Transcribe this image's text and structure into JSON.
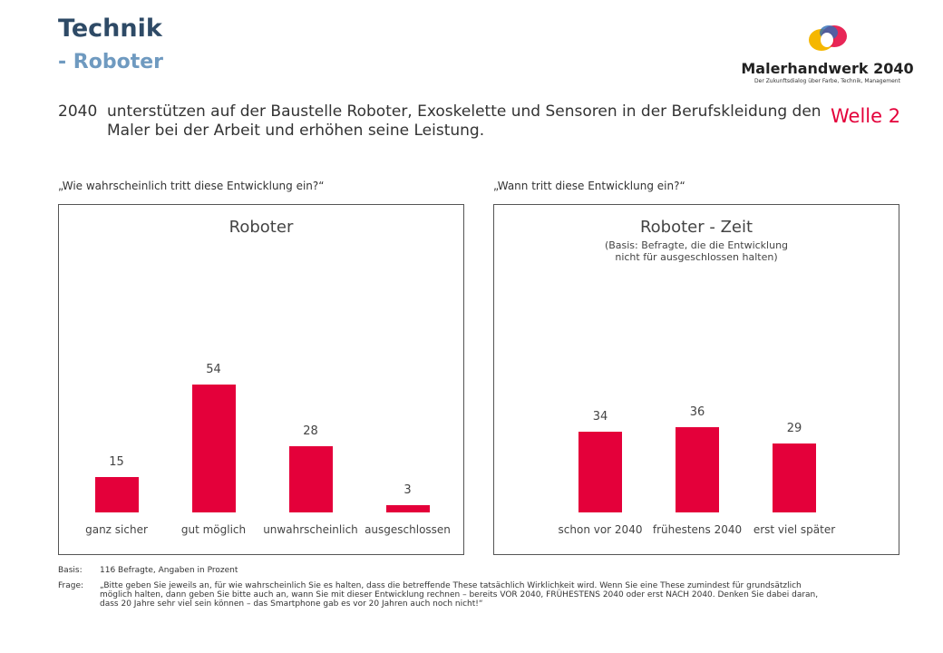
{
  "header": {
    "title": "Technik",
    "subtitle": "- Roboter",
    "logo_name": "Malerhandwerk 2040",
    "logo_tagline": "Der Zukunftsdialog über Farbe, Technik, Management"
  },
  "statement": {
    "lead": "2040",
    "text": "unterstützen auf der Baustelle Roboter, Exoskelette und Sensoren in der Berufskleidung den Maler bei der Arbeit und erhöhen seine Leistung.",
    "wave": "Welle 2"
  },
  "chart_data": [
    {
      "type": "bar",
      "question": "„Wie wahrscheinlich tritt diese Entwicklung ein?“",
      "title": "Roboter",
      "categories": [
        "ganz sicher",
        "gut möglich",
        "unwahrscheinlich",
        "ausgeschlossen"
      ],
      "values": [
        15,
        54,
        28,
        3
      ],
      "color": "#e4003a"
    },
    {
      "type": "bar",
      "question": "„Wann tritt diese Entwicklung ein?“",
      "title": "Roboter - Zeit",
      "subtitle": "(Basis: Befragte, die die Entwicklung nicht für ausgeschlossen halten)",
      "categories": [
        "schon vor 2040",
        "frühestens 2040",
        "erst viel später"
      ],
      "values": [
        34,
        36,
        29
      ],
      "color": "#e4003a"
    }
  ],
  "footer": {
    "basis_label": "Basis:",
    "basis": "116 Befragte, Angaben in Prozent",
    "frage_label": "Frage:",
    "frage": "„Bitte geben Sie jeweils an, für wie wahrscheinlich Sie es halten, dass die betreffende These tatsächlich Wirklichkeit wird. Wenn Sie eine These zumindest für grundsätzlich möglich halten, dann geben Sie bitte auch an, wann Sie mit dieser Entwicklung rechnen – bereits VOR 2040, FRÜHESTENS 2040 oder erst NACH 2040. Denken Sie dabei daran, dass 20 Jahre sehr viel sein können – das Smartphone gab es vor 20 Jahren auch noch nicht!“"
  }
}
